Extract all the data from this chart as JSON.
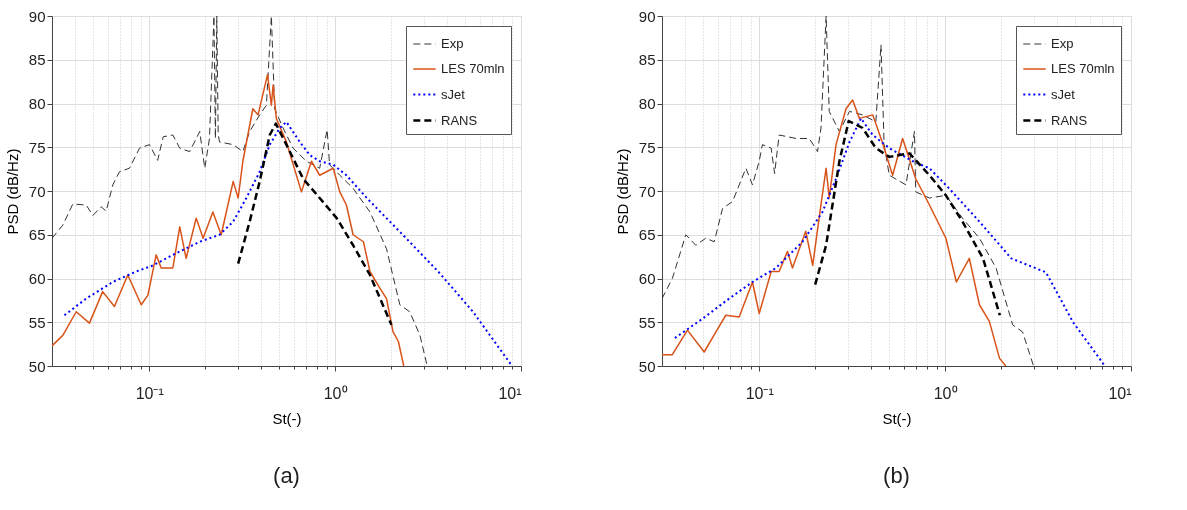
{
  "chart_data": [
    {
      "type": "line",
      "xlabel": "St(-)",
      "ylabel": "PSD (dB/Hz)",
      "log": "x",
      "grid": true,
      "legend": "top right",
      "xlim": [
        0.03,
        10
      ],
      "ylim": [
        50,
        90
      ],
      "xticks": [
        {
          "value": 0.04,
          "label": null
        },
        {
          "value": 0.05,
          "label": null
        },
        {
          "value": 0.06,
          "label": null
        },
        {
          "value": 0.07,
          "label": null
        },
        {
          "value": 0.08,
          "label": null
        },
        {
          "value": 0.09,
          "label": null
        },
        {
          "value": 0.1,
          "label": "10⁻¹"
        },
        {
          "value": 0.2,
          "label": null
        },
        {
          "value": 0.3,
          "label": null
        },
        {
          "value": 0.4,
          "label": null
        },
        {
          "value": 0.5,
          "label": null
        },
        {
          "value": 0.6,
          "label": null
        },
        {
          "value": 0.7,
          "label": null
        },
        {
          "value": 0.8,
          "label": null
        },
        {
          "value": 0.9,
          "label": null
        },
        {
          "value": 1,
          "label": "10⁰"
        },
        {
          "value": 2,
          "label": null
        },
        {
          "value": 3,
          "label": null
        },
        {
          "value": 4,
          "label": null
        },
        {
          "value": 5,
          "label": null
        },
        {
          "value": 6,
          "label": null
        },
        {
          "value": 7,
          "label": null
        },
        {
          "value": 8,
          "label": null
        },
        {
          "value": 9,
          "label": null
        },
        {
          "value": 10,
          "label": "10¹"
        }
      ],
      "yticks": [
        50,
        55,
        60,
        65,
        70,
        75,
        80,
        85,
        90
      ],
      "annotations": [
        "(a)"
      ],
      "series": [
        {
          "name": "Exp",
          "color": "#333333",
          "line_style": "dashed",
          "x": [
            0.03,
            0.0343,
            0.0388,
            0.0458,
            0.0498,
            0.0551,
            0.0587,
            0.0637,
            0.0692,
            0.0783,
            0.0887,
            0.1004,
            0.111,
            0.119,
            0.134,
            0.146,
            0.165,
            0.187,
            0.199,
            0.211,
            0.223,
            0.227,
            0.231,
            0.235,
            0.239,
            0.283,
            0.319,
            0.347,
            0.393,
            0.427,
            0.454,
            0.473,
            0.525,
            0.594,
            0.701,
            0.826,
            0.906,
            0.934,
            1.06,
            1.25,
            1.54,
            1.89,
            2.23,
            2.52,
            2.86,
            3.13
          ],
          "values": [
            64.6,
            66.1,
            68.5,
            68.4,
            67.2,
            68.2,
            67.7,
            70.7,
            72.2,
            72.6,
            74.9,
            75.3,
            73.5,
            76.2,
            76.4,
            74.9,
            74.5,
            76.8,
            72.6,
            76.0,
            90,
            76.0,
            90,
            76.5,
            75.6,
            75.3,
            74.5,
            76.8,
            78.7,
            79.8,
            90,
            79.4,
            77.2,
            74.9,
            73.4,
            72.6,
            77.0,
            73.0,
            71.8,
            70.3,
            67.6,
            63.4,
            57.0,
            56.2,
            53.5,
            50
          ]
        },
        {
          "name": "LES 70mln",
          "color": "#d95319",
          "line_style": "solid",
          "x": [
            0.03,
            0.0343,
            0.0405,
            0.0477,
            0.0562,
            0.065,
            0.0767,
            0.0906,
            0.0984,
            0.109,
            0.116,
            0.134,
            0.146,
            0.158,
            0.179,
            0.195,
            0.22,
            0.244,
            0.283,
            0.301,
            0.319,
            0.361,
            0.385,
            0.433,
            0.454,
            0.464,
            0.483,
            0.547,
            0.659,
            0.746,
            0.826,
            0.977,
            1.06,
            1.15,
            1.25,
            1.42,
            1.54,
            1.74,
            1.89,
            2.05,
            2.19,
            2.34
          ],
          "values": [
            52.3,
            53.5,
            56.2,
            54.9,
            58.5,
            56.8,
            60.4,
            57.0,
            58.1,
            62.7,
            61.2,
            61.2,
            65.9,
            62.3,
            66.9,
            64.6,
            67.6,
            65.0,
            71.1,
            69.2,
            73.4,
            79.4,
            78.7,
            83.3,
            79.8,
            82.1,
            78.3,
            75.6,
            69.9,
            73.4,
            71.8,
            72.6,
            69.9,
            68.4,
            65.0,
            64.2,
            60.8,
            58.9,
            57.7,
            53.9,
            52.8,
            50
          ]
        },
        {
          "name": "sJet",
          "color": "#0000ff",
          "line_style": "dotted",
          "x": [
            0.035,
            0.0458,
            0.0637,
            0.0851,
            0.105,
            0.134,
            0.187,
            0.239,
            0.283,
            0.333,
            0.393,
            0.445,
            0.504,
            0.547,
            0.646,
            0.731,
            0.826,
            0.977,
            1.15,
            1.48,
            1.89,
            2.41,
            3.62,
            5.52,
            8.95
          ],
          "values": [
            55.8,
            57.7,
            59.6,
            60.8,
            61.5,
            62.7,
            64.2,
            65.0,
            66.5,
            69.2,
            72.2,
            75.3,
            77.2,
            77.9,
            75.6,
            74.1,
            73.4,
            73.0,
            71.8,
            69.2,
            66.9,
            64.6,
            60.7,
            56.2,
            50
          ]
        },
        {
          "name": "RANS",
          "color": "#000000",
          "line_style": "dashed",
          "x": [
            0.301,
            0.347,
            0.393,
            0.445,
            0.48,
            0.547,
            0.673,
            0.826,
            1.02,
            1.25,
            1.54,
            2.01
          ],
          "values": [
            61.7,
            66.5,
            71.1,
            76.4,
            77.7,
            75.3,
            71.4,
            69.2,
            66.9,
            63.8,
            60.4,
            54.7
          ]
        }
      ]
    },
    {
      "type": "line",
      "xlabel": "St(-)",
      "ylabel": "PSD (dB/Hz)",
      "log": "x",
      "grid": true,
      "legend": "top right",
      "xlim": [
        0.03,
        10
      ],
      "ylim": [
        50,
        90
      ],
      "xticks": [
        {
          "value": 0.04,
          "label": null
        },
        {
          "value": 0.05,
          "label": null
        },
        {
          "value": 0.06,
          "label": null
        },
        {
          "value": 0.07,
          "label": null
        },
        {
          "value": 0.08,
          "label": null
        },
        {
          "value": 0.09,
          "label": null
        },
        {
          "value": 0.1,
          "label": "10⁻¹"
        },
        {
          "value": 0.2,
          "label": null
        },
        {
          "value": 0.3,
          "label": null
        },
        {
          "value": 0.4,
          "label": null
        },
        {
          "value": 0.5,
          "label": null
        },
        {
          "value": 0.6,
          "label": null
        },
        {
          "value": 0.7,
          "label": null
        },
        {
          "value": 0.8,
          "label": null
        },
        {
          "value": 0.9,
          "label": null
        },
        {
          "value": 1,
          "label": "10⁰"
        },
        {
          "value": 2,
          "label": null
        },
        {
          "value": 3,
          "label": null
        },
        {
          "value": 4,
          "label": null
        },
        {
          "value": 5,
          "label": null
        },
        {
          "value": 6,
          "label": null
        },
        {
          "value": 7,
          "label": null
        },
        {
          "value": 8,
          "label": null
        },
        {
          "value": 9,
          "label": null
        },
        {
          "value": 10,
          "label": "10¹"
        }
      ],
      "yticks": [
        50,
        55,
        60,
        65,
        70,
        75,
        80,
        85,
        90
      ],
      "annotations": [
        "(b)"
      ],
      "series": [
        {
          "name": "Exp",
          "color": "#333333",
          "line_style": "dashed",
          "x": [
            0.03,
            0.0341,
            0.0403,
            0.0456,
            0.0516,
            0.0573,
            0.0635,
            0.0719,
            0.0848,
            0.092,
            0.1,
            0.104,
            0.116,
            0.121,
            0.128,
            0.158,
            0.186,
            0.206,
            0.215,
            0.229,
            0.238,
            0.27,
            0.306,
            0.36,
            0.424,
            0.452,
            0.47,
            0.501,
            0.616,
            0.684,
            0.695,
            0.824,
            1.01,
            1.24,
            1.53,
            1.88,
            2.31,
            2.61,
            2.99
          ],
          "values": [
            57.7,
            60.0,
            65.0,
            63.8,
            64.6,
            64.2,
            68.0,
            68.8,
            72.6,
            70.7,
            73.4,
            75.3,
            74.9,
            72.0,
            76.4,
            76.0,
            76.0,
            74.5,
            77.2,
            90,
            79.1,
            76.8,
            79.1,
            78.7,
            77.9,
            86.7,
            75.3,
            71.8,
            70.7,
            76.8,
            69.9,
            69.2,
            69.5,
            66.9,
            64.6,
            61.2,
            54.7,
            53.9,
            50
          ]
        },
        {
          "name": "LES 70mln",
          "color": "#d95319",
          "line_style": "solid",
          "x": [
            0.03,
            0.0341,
            0.0411,
            0.0506,
            0.0585,
            0.0661,
            0.078,
            0.092,
            0.1,
            0.116,
            0.128,
            0.142,
            0.151,
            0.178,
            0.194,
            0.21,
            0.229,
            0.238,
            0.259,
            0.293,
            0.318,
            0.346,
            0.408,
            0.459,
            0.522,
            0.591,
            0.695,
            0.824,
            1.01,
            1.15,
            1.35,
            1.53,
            1.73,
            1.96,
            2.12
          ],
          "values": [
            51.3,
            51.3,
            54.1,
            51.6,
            53.9,
            55.8,
            55.6,
            59.6,
            56.0,
            60.8,
            60.8,
            63.1,
            61.2,
            65.4,
            61.5,
            66.9,
            72.6,
            69.2,
            75.3,
            79.4,
            80.4,
            78.3,
            78.7,
            75.6,
            71.8,
            76.0,
            71.4,
            68.4,
            64.6,
            59.6,
            62.3,
            57.0,
            55.1,
            50.9,
            50
          ]
        },
        {
          "name": "sJet",
          "color": "#0000ff",
          "line_style": "dotted",
          "x": [
            0.0352,
            0.0495,
            0.0689,
            0.092,
            0.123,
            0.171,
            0.219,
            0.259,
            0.306,
            0.353,
            0.408,
            0.501,
            0.67,
            0.824,
            1.05,
            1.53,
            2.27,
            3.49,
            4.88,
            7.24
          ],
          "values": [
            53.2,
            55.4,
            57.7,
            59.6,
            61.2,
            64.2,
            67.6,
            71.4,
            75.6,
            78.3,
            76.4,
            74.9,
            73.4,
            72.6,
            70.3,
            66.5,
            62.3,
            60.7,
            55.0,
            50
          ]
        },
        {
          "name": "RANS",
          "color": "#000000",
          "line_style": "dashed",
          "x": [
            0.2,
            0.229,
            0.27,
            0.303,
            0.36,
            0.424,
            0.501,
            0.643,
            0.824,
            1.01,
            1.24,
            1.6,
            1.97
          ],
          "values": [
            59.3,
            63.8,
            73.4,
            78.0,
            77.2,
            74.9,
            73.9,
            74.3,
            71.8,
            69.5,
            66.5,
            62.3,
            55.8
          ]
        }
      ]
    }
  ]
}
